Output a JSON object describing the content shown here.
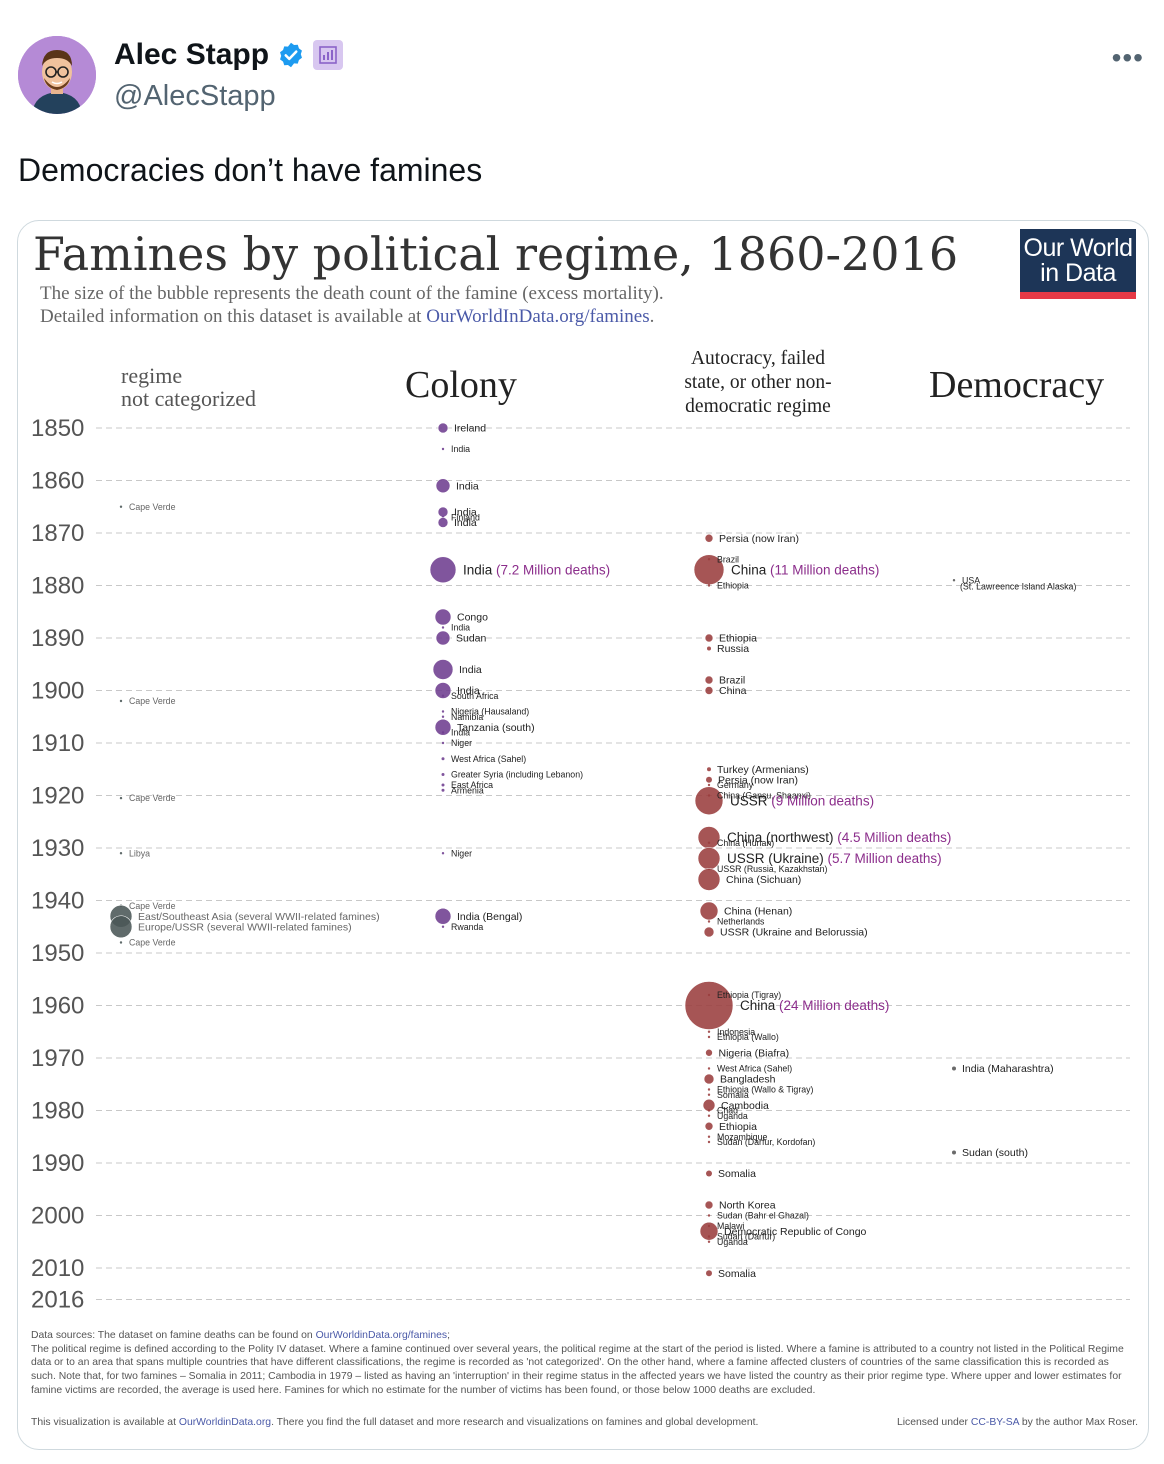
{
  "tweet": {
    "author_name": "Alec Stapp",
    "handle": "@AlecStapp",
    "text": "Democracies don’t have famines",
    "more_label": "•••"
  },
  "icons": {
    "verified": "verified-badge-icon",
    "subscriber": "subscriber-badge-icon",
    "more": "more-options-icon",
    "avatar": "avatar-image"
  },
  "colors": {
    "verified": "#1d9bf0",
    "colony": "#6e3d8f",
    "autocracy": "#9a3d3d",
    "not_categorized": "#4a5656",
    "democracy": "#555555",
    "highlight": "#8b2d8b"
  },
  "card": {
    "title": "Famines by political regime, 1860-2016",
    "subtitle_line1": "The size of the bubble represents the death count of the famine (excess mortality).",
    "subtitle_line2_prefix": "Detailed information on this dataset is available at ",
    "subtitle_link": "OurWorldInData.org/famines",
    "subtitle_line2_suffix": ".",
    "logo_line1": "Our World",
    "logo_line2": "in Data",
    "footer_prefix": "Data sources: The dataset on famine deaths can be found on ",
    "footer_link": "OurWorldinData.org/famines",
    "footer_suffix": ";",
    "footer_body": "The political regime is defined according to the Polity IV dataset. Where a famine continued over several years, the political regime at the start of the period is listed. Where a famine is attributed to a country not listed in the Political Regime data or to an area that spans multiple countries that have different classifications, the regime is recorded as 'not categorized'. On the other hand, where a famine affected clusters of countries of the same classification this is recorded as such. Note that, for two famines – Somalia in 2011; Cambodia in 1979 – listed as having an 'interruption' in their regime status in the affected years we have listed the country as their prior regime type. Where upper and lower estimates for famine victims are recorded, the average is used here. Famines for which no estimate for the number of victims has been found, or those below 1000 deaths are excluded.",
    "footer_last_prefix": "This visualization is available at ",
    "footer_last_link": "OurWorldinData.org",
    "footer_last_suffix": ". There you find the full dataset and more research and visualizations on famines and global development.",
    "license_prefix": "Licensed under ",
    "license_link": "CC-BY-SA",
    "license_suffix": " by the author Max Roser."
  },
  "chart_data": {
    "type": "scatter",
    "title": "Famines by political regime, 1860-2016",
    "y_axis": {
      "ticks": [
        1850,
        1860,
        1870,
        1880,
        1890,
        1900,
        1910,
        1920,
        1930,
        1940,
        1950,
        1960,
        1970,
        1980,
        1990,
        2000,
        2010,
        2016
      ],
      "range": [
        1850,
        2016
      ],
      "grid": "dashed"
    },
    "categories": [
      "regime not categorized",
      "Colony",
      "Autocracy, failed state, or other non-democratic regime",
      "Democracy"
    ],
    "category_header_lines": [
      [
        "regime",
        "not categorized"
      ],
      [
        "Colony"
      ],
      [
        "Autocracy, failed",
        "state, or other non-",
        "democratic regime"
      ],
      [
        "Democracy"
      ]
    ],
    "series": [
      {
        "category": 0,
        "points": [
          {
            "year": 1865,
            "size": 1,
            "label": "Cape Verde"
          },
          {
            "year": 1902,
            "size": 1,
            "label": "Cape Verde"
          },
          {
            "year": 1920.5,
            "size": 1,
            "label": "Cape Verde"
          },
          {
            "year": 1931,
            "size": 1,
            "label": "Libya"
          },
          {
            "year": 1941,
            "size": 0.5,
            "label": "Cape Verde"
          },
          {
            "year": 1943,
            "size": 11,
            "label": "East/Southeast Asia (several WWII-related famines)"
          },
          {
            "year": 1945,
            "size": 11,
            "label": "Europe/USSR (several WWII-related famines)"
          },
          {
            "year": 1948,
            "size": 0.5,
            "label": "Cape Verde"
          }
        ]
      },
      {
        "category": 1,
        "points": [
          {
            "year": 1850,
            "size": 5,
            "label": "Ireland"
          },
          {
            "year": 1854,
            "size": 1,
            "label": "India"
          },
          {
            "year": 1861,
            "size": 7,
            "label": "India"
          },
          {
            "year": 1866,
            "size": 5,
            "label": "India"
          },
          {
            "year": 1867,
            "size": 1,
            "label": "Finland"
          },
          {
            "year": 1868,
            "size": 5,
            "label": "India"
          },
          {
            "year": 1877,
            "size": 13,
            "label": "India",
            "highlight": "(7.2 Million deaths)"
          },
          {
            "year": 1886,
            "size": 8,
            "label": "Congo"
          },
          {
            "year": 1888,
            "size": 1,
            "label": "India"
          },
          {
            "year": 1890,
            "size": 7,
            "label": "Sudan"
          },
          {
            "year": 1896,
            "size": 10,
            "label": "India"
          },
          {
            "year": 1900,
            "size": 8,
            "label": "India"
          },
          {
            "year": 1901,
            "size": 1,
            "label": "South Africa"
          },
          {
            "year": 1904,
            "size": 1,
            "label": "Nigeria (Hausaland)"
          },
          {
            "year": 1905,
            "size": 1,
            "label": "Namibia"
          },
          {
            "year": 1907,
            "size": 8,
            "label": "Tanzania (south)"
          },
          {
            "year": 1908,
            "size": 1,
            "label": "India"
          },
          {
            "year": 1910,
            "size": 1,
            "label": "Niger"
          },
          {
            "year": 1913,
            "size": 1.5,
            "label": "West Africa (Sahel)"
          },
          {
            "year": 1916,
            "size": 1.5,
            "label": "Greater Syria (including Lebanon)"
          },
          {
            "year": 1918,
            "size": 1.5,
            "label": "East Africa"
          },
          {
            "year": 1919,
            "size": 1.5,
            "label": "Armenia"
          },
          {
            "year": 1931,
            "size": 0.5,
            "label": "Niger"
          },
          {
            "year": 1943,
            "size": 8,
            "label": "India (Bengal)"
          },
          {
            "year": 1945,
            "size": 0.5,
            "label": "Rwanda"
          }
        ]
      },
      {
        "category": 2,
        "points": [
          {
            "year": 1871,
            "size": 4,
            "label": "Persia (now Iran)"
          },
          {
            "year": 1875,
            "size": 1,
            "label": "Brazil"
          },
          {
            "year": 1877,
            "size": 15,
            "label": "China",
            "highlight": "(11 Million deaths)"
          },
          {
            "year": 1880,
            "size": 1,
            "label": "Ethiopia"
          },
          {
            "year": 1890,
            "size": 4,
            "label": "Ethiopia"
          },
          {
            "year": 1892,
            "size": 2,
            "label": "Russia"
          },
          {
            "year": 1898,
            "size": 4,
            "label": "Brazil"
          },
          {
            "year": 1900,
            "size": 4,
            "label": "China"
          },
          {
            "year": 1915,
            "size": 2,
            "label": "Turkey (Armenians)"
          },
          {
            "year": 1917,
            "size": 3,
            "label": "Persia (now Iran)"
          },
          {
            "year": 1918,
            "size": 1,
            "label": "Germany"
          },
          {
            "year": 1920,
            "size": 1,
            "label": "China (Gansu, Shaanxi)"
          },
          {
            "year": 1921,
            "size": 14,
            "label": "USSR",
            "highlight": "(9 Million deaths)"
          },
          {
            "year": 1928,
            "size": 11,
            "label": "China (northwest)",
            "highlight": "(4.5 Million deaths)"
          },
          {
            "year": 1929,
            "size": 1,
            "label": "China (Hunan)"
          },
          {
            "year": 1932,
            "size": 11,
            "label": "USSR (Ukraine)",
            "highlight": "(5.7 Million deaths)"
          },
          {
            "year": 1934,
            "size": 1,
            "label": "USSR (Russia, Kazakhstan)"
          },
          {
            "year": 1936,
            "size": 11,
            "label": "China (Sichuan)"
          },
          {
            "year": 1942,
            "size": 9,
            "label": "China (Henan)"
          },
          {
            "year": 1944,
            "size": 1,
            "label": "Netherlands"
          },
          {
            "year": 1946,
            "size": 5,
            "label": "USSR (Ukraine and Belorussia)"
          },
          {
            "year": 1958,
            "size": 1,
            "label": "Ethiopia (Tigray)"
          },
          {
            "year": 1960,
            "size": 24,
            "label": "China",
            "highlight": "(24 Million deaths)"
          },
          {
            "year": 1965,
            "size": 1,
            "label": "Indonesia"
          },
          {
            "year": 1966,
            "size": 1,
            "label": "Ethiopia (Wallo)"
          },
          {
            "year": 1969,
            "size": 3.5,
            "label": "Nigeria (Biafra)"
          },
          {
            "year": 1972,
            "size": 1,
            "label": "West Africa (Sahel)"
          },
          {
            "year": 1974,
            "size": 5,
            "label": "Bangladesh"
          },
          {
            "year": 1976,
            "size": 1,
            "label": "Ethiopia (Wallo & Tigray)"
          },
          {
            "year": 1977,
            "size": 1,
            "label": "Somalia"
          },
          {
            "year": 1979,
            "size": 6,
            "label": "Cambodia"
          },
          {
            "year": 1980,
            "size": 1,
            "label": "Chad"
          },
          {
            "year": 1981,
            "size": 1,
            "label": "Uganda"
          },
          {
            "year": 1983,
            "size": 4,
            "label": "Ethiopia"
          },
          {
            "year": 1985,
            "size": 1,
            "label": "Mozambique"
          },
          {
            "year": 1986,
            "size": 1,
            "label": "Sudan (Darfur, Kordofan)"
          },
          {
            "year": 1992,
            "size": 3,
            "label": "Somalia"
          },
          {
            "year": 1998,
            "size": 4,
            "label": "North Korea"
          },
          {
            "year": 2000,
            "size": 1,
            "label": "Sudan (Bahr el Ghazal)"
          },
          {
            "year": 2002,
            "size": 1,
            "label": "Malawi"
          },
          {
            "year": 2003,
            "size": 9,
            "label": "Democratic Republic of Congo"
          },
          {
            "year": 2004,
            "size": 1,
            "label": "Sudan (Darfur)"
          },
          {
            "year": 2005,
            "size": 1,
            "label": "Uganda"
          },
          {
            "year": 2011,
            "size": 3,
            "label": "Somalia"
          }
        ]
      },
      {
        "category": 3,
        "points": [
          {
            "year": 1879,
            "size": 0.5,
            "label": "USA"
          },
          {
            "year": 1880,
            "size": 0,
            "label": "(St. Lawreence Island Alaska)"
          },
          {
            "year": 1972,
            "size": 2,
            "label": "India (Maharashtra)"
          },
          {
            "year": 1988,
            "size": 2,
            "label": "Sudan (south)"
          }
        ]
      }
    ]
  }
}
